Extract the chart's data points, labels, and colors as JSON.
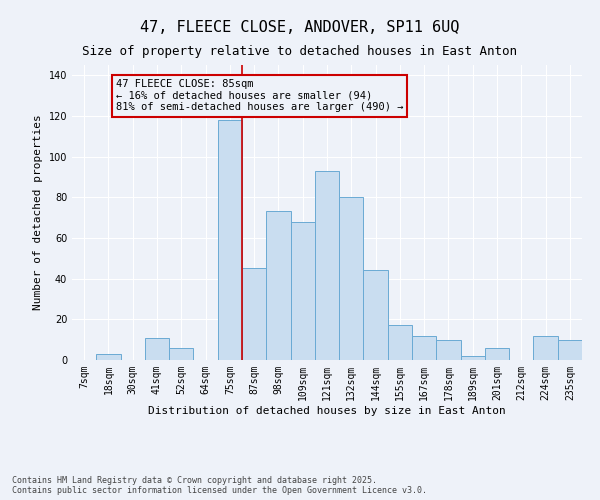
{
  "title": "47, FLEECE CLOSE, ANDOVER, SP11 6UQ",
  "subtitle": "Size of property relative to detached houses in East Anton",
  "xlabel": "Distribution of detached houses by size in East Anton",
  "ylabel": "Number of detached properties",
  "bar_color": "#c9ddf0",
  "bar_edge_color": "#6aaad4",
  "categories": [
    "7sqm",
    "18sqm",
    "30sqm",
    "41sqm",
    "52sqm",
    "64sqm",
    "75sqm",
    "87sqm",
    "98sqm",
    "109sqm",
    "121sqm",
    "132sqm",
    "144sqm",
    "155sqm",
    "167sqm",
    "178sqm",
    "189sqm",
    "201sqm",
    "212sqm",
    "224sqm",
    "235sqm"
  ],
  "values": [
    0,
    3,
    0,
    11,
    6,
    0,
    118,
    45,
    73,
    68,
    93,
    80,
    44,
    17,
    12,
    10,
    2,
    6,
    0,
    12,
    10
  ],
  "vline_color": "#cc0000",
  "annotation_text": "47 FLEECE CLOSE: 85sqm\n← 16% of detached houses are smaller (94)\n81% of semi-detached houses are larger (490) →",
  "annotation_box_color": "#cc0000",
  "ylim": [
    0,
    145
  ],
  "yticks": [
    0,
    20,
    40,
    60,
    80,
    100,
    120,
    140
  ],
  "footnote": "Contains HM Land Registry data © Crown copyright and database right 2025.\nContains public sector information licensed under the Open Government Licence v3.0.",
  "background_color": "#eef2f9",
  "grid_color": "#ffffff",
  "title_fontsize": 11,
  "subtitle_fontsize": 9,
  "axis_label_fontsize": 8,
  "tick_fontsize": 7,
  "annotation_fontsize": 7.5,
  "footnote_fontsize": 6
}
